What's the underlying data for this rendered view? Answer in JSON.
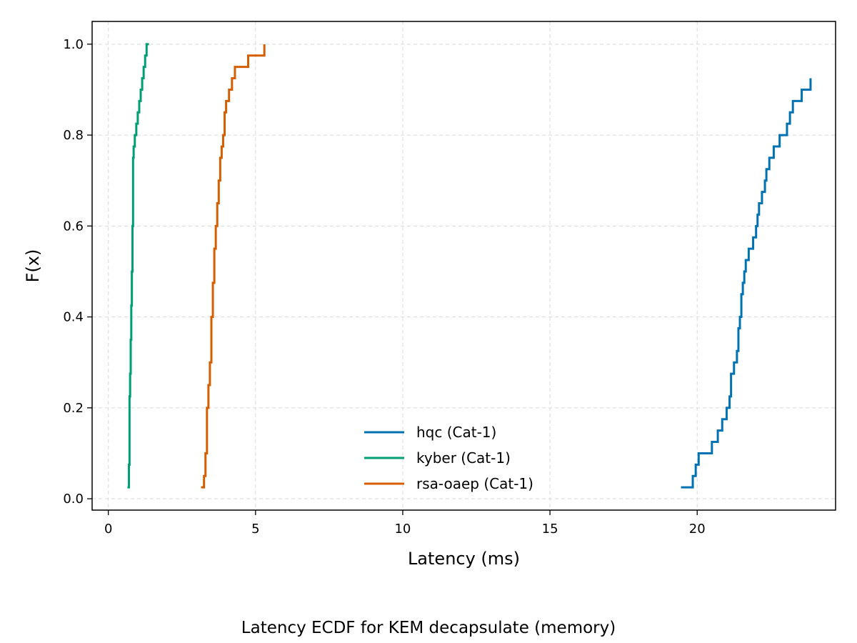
{
  "caption": "Latency ECDF for KEM decapsulate (memory)",
  "chart_data": {
    "type": "line",
    "step": "post",
    "title": "",
    "xlabel": "Latency (ms)",
    "ylabel": "F(x)",
    "xlim": [
      -0.55,
      24.7
    ],
    "ylim": [
      -0.025,
      1.05
    ],
    "xticks": [
      0,
      5,
      10,
      15,
      20
    ],
    "yticks": [
      0.0,
      0.2,
      0.4,
      0.6,
      0.8,
      1.0
    ],
    "ytick_labels": [
      "0.0",
      "0.2",
      "0.4",
      "0.6",
      "0.8",
      "1.0"
    ],
    "grid": true,
    "legend_position": "lower center",
    "series": [
      {
        "name": "hqc (Cat-1)",
        "color": "#0072b2",
        "x": [
          19.45,
          19.85,
          19.95,
          20.05,
          20.5,
          20.7,
          20.85,
          21.0,
          21.1,
          21.15,
          21.25,
          21.35,
          21.4,
          21.45,
          21.5,
          21.55,
          21.6,
          21.65,
          21.75,
          21.9,
          22.0,
          22.05,
          22.1,
          22.2,
          22.3,
          22.35,
          22.45,
          22.6,
          22.8,
          23.05,
          23.15,
          23.25,
          23.55,
          23.85
        ],
        "y": [
          0.025,
          0.05,
          0.075,
          0.1,
          0.125,
          0.15,
          0.175,
          0.2,
          0.225,
          0.275,
          0.3,
          0.325,
          0.375,
          0.4,
          0.45,
          0.475,
          0.5,
          0.525,
          0.55,
          0.575,
          0.6,
          0.625,
          0.65,
          0.675,
          0.7,
          0.725,
          0.75,
          0.775,
          0.8,
          0.825,
          0.85,
          0.875,
          0.9,
          0.925
        ]
      },
      {
        "name": "kyber (Cat-1)",
        "color": "#009e73",
        "x": [
          0.65,
          0.7,
          0.72,
          0.74,
          0.76,
          0.78,
          0.8,
          0.82,
          0.84,
          0.86,
          0.9,
          0.95,
          1.0,
          1.05,
          1.1,
          1.15,
          1.2,
          1.25,
          1.3,
          1.38
        ],
        "y": [
          0.025,
          0.075,
          0.225,
          0.275,
          0.35,
          0.425,
          0.5,
          0.6,
          0.75,
          0.775,
          0.8,
          0.825,
          0.85,
          0.875,
          0.9,
          0.925,
          0.95,
          0.975,
          1.0,
          1.0
        ]
      },
      {
        "name": "rsa-oaep (Cat-1)",
        "color": "#d55e00",
        "x": [
          3.15,
          3.25,
          3.3,
          3.35,
          3.4,
          3.45,
          3.5,
          3.55,
          3.6,
          3.65,
          3.7,
          3.75,
          3.8,
          3.85,
          3.9,
          3.95,
          4.0,
          4.1,
          4.2,
          4.3,
          4.4,
          4.75,
          5.3
        ],
        "y": [
          0.025,
          0.05,
          0.1,
          0.2,
          0.25,
          0.3,
          0.4,
          0.475,
          0.55,
          0.6,
          0.65,
          0.7,
          0.75,
          0.775,
          0.8,
          0.85,
          0.875,
          0.9,
          0.925,
          0.95,
          0.95,
          0.975,
          1.0
        ]
      }
    ]
  }
}
